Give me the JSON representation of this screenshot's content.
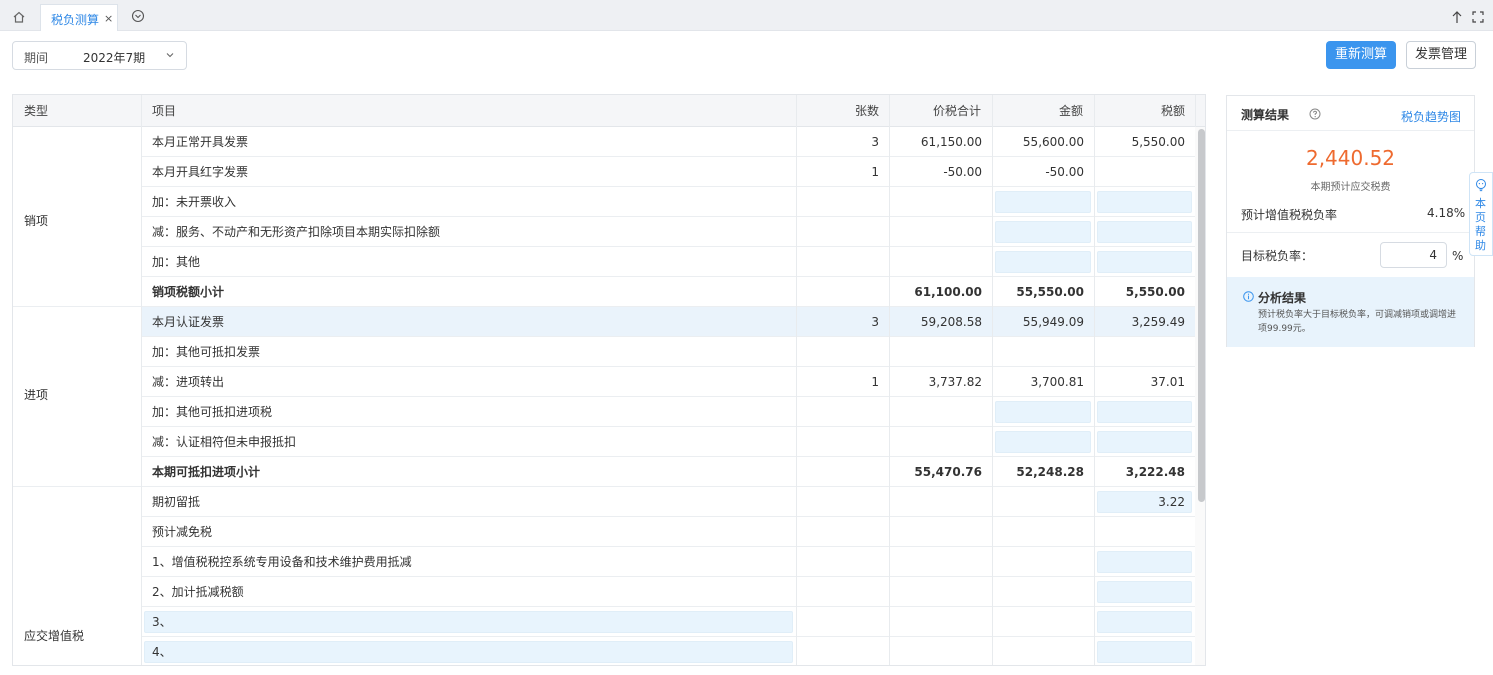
{
  "tabs": {
    "active_label": "税负测算",
    "close_glyph": "×"
  },
  "toolbar": {
    "period_label": "期间",
    "period_value": "2022年7期",
    "recalc_label": "重新测算",
    "invoice_mgmt_label": "发票管理"
  },
  "table": {
    "headers": [
      "类型",
      "项目",
      "张数",
      "价税合计",
      "金额",
      "税额"
    ],
    "groups": [
      {
        "type": "销项"
      },
      {
        "type": "进项"
      },
      {
        "type": "应交增值税"
      }
    ],
    "rows": [
      {
        "item": "本月正常开具发票",
        "count": "3",
        "total": "61,150.00",
        "amount": "55,600.00",
        "tax": "5,550.00"
      },
      {
        "item": "本月开具红字发票",
        "count": "1",
        "total": "-50.00",
        "amount": "-50.00",
        "tax": ""
      },
      {
        "item": "加：未开票收入",
        "count": "",
        "total": "",
        "amount": "",
        "tax": ""
      },
      {
        "item": "减：服务、不动产和无形资产扣除项目本期实际扣除额",
        "count": "",
        "total": "",
        "amount": "",
        "tax": ""
      },
      {
        "item": "加：其他",
        "count": "",
        "total": "",
        "amount": "",
        "tax": ""
      },
      {
        "item": "销项税额小计",
        "count": "",
        "total": "61,100.00",
        "amount": "55,550.00",
        "tax": "5,550.00"
      },
      {
        "item": "本月认证发票",
        "count": "3",
        "total": "59,208.58",
        "amount": "55,949.09",
        "tax": "3,259.49"
      },
      {
        "item": "加：其他可抵扣发票",
        "count": "",
        "total": "",
        "amount": "",
        "tax": ""
      },
      {
        "item": "减：进项转出",
        "count": "1",
        "total": "3,737.82",
        "amount": "3,700.81",
        "tax": "37.01"
      },
      {
        "item": "加：其他可抵扣进项税",
        "count": "",
        "total": "",
        "amount": "",
        "tax": ""
      },
      {
        "item": "减：认证相符但未申报抵扣",
        "count": "",
        "total": "",
        "amount": "",
        "tax": ""
      },
      {
        "item": "本期可抵扣进项小计",
        "count": "",
        "total": "55,470.76",
        "amount": "52,248.28",
        "tax": "3,222.48"
      },
      {
        "item": "期初留抵",
        "count": "",
        "total": "",
        "amount": "",
        "tax": "3.22"
      },
      {
        "item": "预计减免税",
        "count": "",
        "total": "",
        "amount": "",
        "tax": ""
      },
      {
        "item": "1、增值税税控系统专用设备和技术维护费用抵减",
        "count": "",
        "total": "",
        "amount": "",
        "tax": ""
      },
      {
        "item": "2、加计抵减税额",
        "count": "",
        "total": "",
        "amount": "",
        "tax": ""
      },
      {
        "item": "3、",
        "count": "",
        "total": "",
        "amount": "",
        "tax": ""
      },
      {
        "item": "4、",
        "count": "",
        "total": "",
        "amount": "",
        "tax": ""
      }
    ]
  },
  "result_panel": {
    "title": "测算结果",
    "trend_link": "税负趋势图",
    "payable_value": "2,440.52",
    "payable_caption": "本期预计应交税费",
    "vat_burden_label": "预计增值税税负率",
    "vat_burden_value": "4.18%",
    "target_label": "目标税负率：",
    "target_value": "4",
    "target_unit": "%",
    "analysis_title": "分析结果",
    "analysis_text": "预计税负率大于目标税负率，可调减销项或调增进项99.99元。"
  },
  "help": {
    "label": "本页帮助"
  },
  "colors": {
    "accent": "#3b95ee",
    "payable": "#ee6a2f",
    "edit_cell": "#e8f4fd"
  }
}
